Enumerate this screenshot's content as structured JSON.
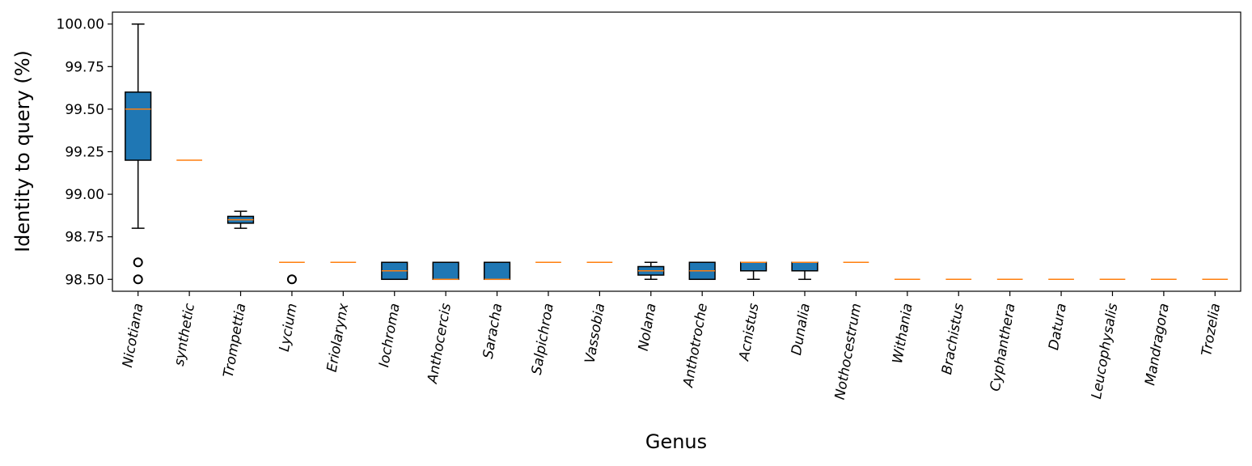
{
  "chart_data": {
    "type": "box",
    "xlabel": "Genus",
    "ylabel": "Identity to query (%)",
    "ylim": [
      98.43,
      100.07
    ],
    "yticks": [
      "98.50",
      "98.75",
      "99.00",
      "99.25",
      "99.50",
      "99.75",
      "100.00"
    ],
    "grid": false,
    "colors": {
      "box_fill": "#1f77b4",
      "median": "#ff7f0e",
      "line": "#000000"
    },
    "categories": [
      "Nicotiana",
      "synthetic",
      "Trompettia",
      "Lycium",
      "Eriolarynx",
      "Iochroma",
      "Anthocercis",
      "Saracha",
      "Salpichroa",
      "Vassobia",
      "Nolana",
      "Anthotroche",
      "Acnistus",
      "Dunalia",
      "Nothocestrum",
      "Withania",
      "Brachistus",
      "Cyphanthera",
      "Datura",
      "Leucophysalis",
      "Mandragora",
      "Trozelia"
    ],
    "boxes": [
      {
        "label": "Nicotiana",
        "whislo": 98.8,
        "q1": 99.2,
        "med": 99.5,
        "q3": 99.6,
        "whishi": 100.0,
        "fliers": [
          98.6,
          98.5
        ]
      },
      {
        "label": "synthetic",
        "whislo": 99.2,
        "q1": 99.2,
        "med": 99.2,
        "q3": 99.2,
        "whishi": 99.2,
        "fliers": []
      },
      {
        "label": "Trompettia",
        "whislo": 98.8,
        "q1": 98.83,
        "med": 98.85,
        "q3": 98.87,
        "whishi": 98.9,
        "fliers": []
      },
      {
        "label": "Lycium",
        "whislo": 98.6,
        "q1": 98.6,
        "med": 98.6,
        "q3": 98.6,
        "whishi": 98.6,
        "fliers": [
          98.5
        ]
      },
      {
        "label": "Eriolarynx",
        "whislo": 98.6,
        "q1": 98.6,
        "med": 98.6,
        "q3": 98.6,
        "whishi": 98.6,
        "fliers": []
      },
      {
        "label": "Iochroma",
        "whislo": 98.5,
        "q1": 98.5,
        "med": 98.55,
        "q3": 98.6,
        "whishi": 98.6,
        "fliers": []
      },
      {
        "label": "Anthocercis",
        "whislo": 98.5,
        "q1": 98.5,
        "med": 98.5,
        "q3": 98.6,
        "whishi": 98.6,
        "fliers": []
      },
      {
        "label": "Saracha",
        "whislo": 98.5,
        "q1": 98.5,
        "med": 98.5,
        "q3": 98.6,
        "whishi": 98.6,
        "fliers": []
      },
      {
        "label": "Salpichroa",
        "whislo": 98.6,
        "q1": 98.6,
        "med": 98.6,
        "q3": 98.6,
        "whishi": 98.6,
        "fliers": []
      },
      {
        "label": "Vassobia",
        "whislo": 98.6,
        "q1": 98.6,
        "med": 98.6,
        "q3": 98.6,
        "whishi": 98.6,
        "fliers": []
      },
      {
        "label": "Nolana",
        "whislo": 98.5,
        "q1": 98.525,
        "med": 98.55,
        "q3": 98.575,
        "whishi": 98.6,
        "fliers": []
      },
      {
        "label": "Anthotroche",
        "whislo": 98.5,
        "q1": 98.5,
        "med": 98.55,
        "q3": 98.6,
        "whishi": 98.6,
        "fliers": []
      },
      {
        "label": "Acnistus",
        "whislo": 98.5,
        "q1": 98.55,
        "med": 98.6,
        "q3": 98.6,
        "whishi": 98.6,
        "fliers": []
      },
      {
        "label": "Dunalia",
        "whislo": 98.5,
        "q1": 98.55,
        "med": 98.6,
        "q3": 98.6,
        "whishi": 98.6,
        "fliers": []
      },
      {
        "label": "Nothocestrum",
        "whislo": 98.6,
        "q1": 98.6,
        "med": 98.6,
        "q3": 98.6,
        "whishi": 98.6,
        "fliers": []
      },
      {
        "label": "Withania",
        "whislo": 98.5,
        "q1": 98.5,
        "med": 98.5,
        "q3": 98.5,
        "whishi": 98.5,
        "fliers": []
      },
      {
        "label": "Brachistus",
        "whislo": 98.5,
        "q1": 98.5,
        "med": 98.5,
        "q3": 98.5,
        "whishi": 98.5,
        "fliers": []
      },
      {
        "label": "Cyphanthera",
        "whislo": 98.5,
        "q1": 98.5,
        "med": 98.5,
        "q3": 98.5,
        "whishi": 98.5,
        "fliers": []
      },
      {
        "label": "Datura",
        "whislo": 98.5,
        "q1": 98.5,
        "med": 98.5,
        "q3": 98.5,
        "whishi": 98.5,
        "fliers": []
      },
      {
        "label": "Leucophysalis",
        "whislo": 98.5,
        "q1": 98.5,
        "med": 98.5,
        "q3": 98.5,
        "whishi": 98.5,
        "fliers": []
      },
      {
        "label": "Mandragora",
        "whislo": 98.5,
        "q1": 98.5,
        "med": 98.5,
        "q3": 98.5,
        "whishi": 98.5,
        "fliers": []
      },
      {
        "label": "Trozelia",
        "whislo": 98.5,
        "q1": 98.5,
        "med": 98.5,
        "q3": 98.5,
        "whishi": 98.5,
        "fliers": []
      }
    ]
  }
}
